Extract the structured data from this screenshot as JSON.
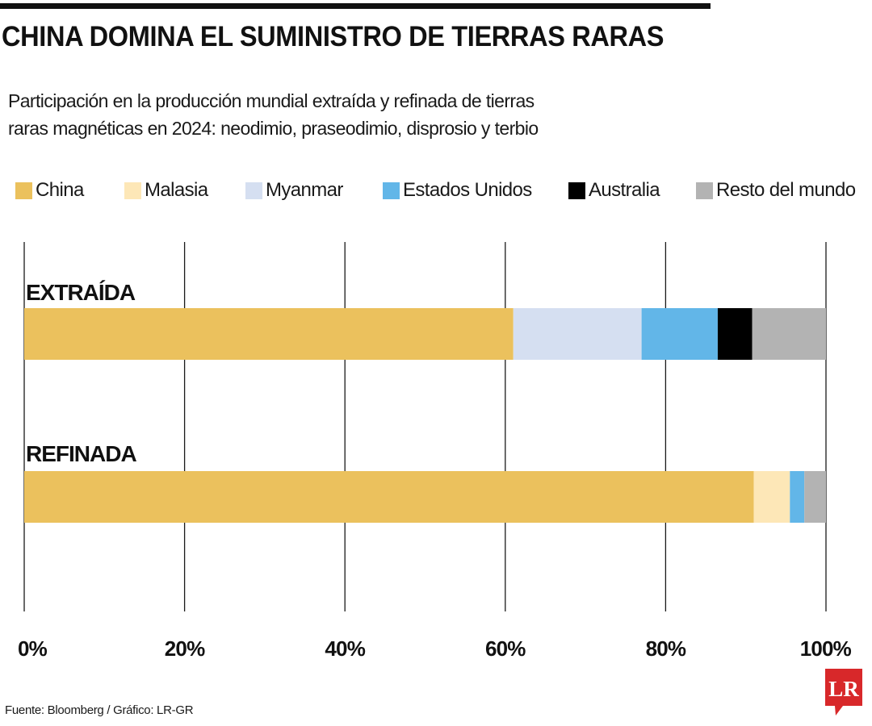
{
  "title": "CHINA DOMINA EL SUMINISTRO DE TIERRAS RARAS",
  "subtitle_lines": [
    "Participación en la producción mundial extraída y refinada de tierras",
    "raras magnéticas en 2024: neodimio, praseodimio, disprosio y terbio"
  ],
  "source": "Fuente: Bloomberg / Gráfico: LR-GR",
  "logo_text": "LR",
  "colors": {
    "China": "#ebc15d",
    "Malasia": "#fde7b7",
    "Myanmar": "#d5dff1",
    "Estados Unidos": "#62b6e8",
    "Australia": "#000000",
    "Resto del mundo": "#b3b3b3",
    "logo": "#d8282a"
  },
  "chart_data": {
    "type": "bar",
    "orientation": "horizontal",
    "stacked": true,
    "categories": [
      "EXTRAÍDA",
      "REFINADA"
    ],
    "series": [
      {
        "name": "China",
        "values": [
          61,
          91
        ]
      },
      {
        "name": "Malasia",
        "values": [
          0,
          4.5
        ]
      },
      {
        "name": "Myanmar",
        "values": [
          16,
          0
        ]
      },
      {
        "name": "Estados Unidos",
        "values": [
          9.5,
          1.8
        ]
      },
      {
        "name": "Australia",
        "values": [
          4.3,
          0
        ]
      },
      {
        "name": "Resto del mundo",
        "values": [
          9.2,
          2.7
        ]
      }
    ],
    "xlim": [
      0,
      100
    ],
    "xticks": [
      "0%",
      "20%",
      "40%",
      "60%",
      "80%",
      "100%"
    ],
    "grid": true,
    "legend_position": "top"
  }
}
